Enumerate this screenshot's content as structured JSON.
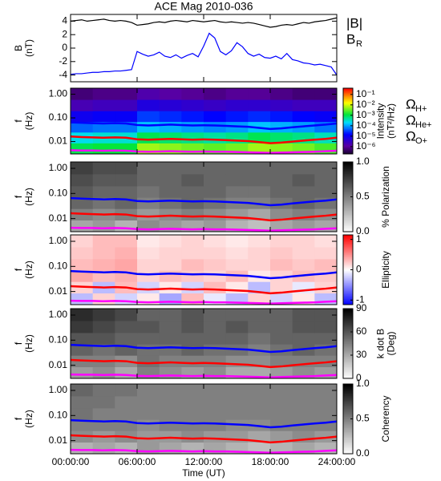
{
  "chart_data": [
    {
      "type": "line",
      "title": "ACE Mag 2010-036",
      "ylabel": [
        "B",
        "(nT)"
      ],
      "xlim": [
        0,
        24
      ],
      "xticks": [
        0,
        6,
        12,
        18,
        24
      ],
      "ylim": [
        -5,
        5
      ],
      "yticks": [
        -4,
        -2,
        0,
        2,
        4
      ],
      "x": [
        0,
        0.5,
        1,
        1.5,
        2,
        2.5,
        3,
        3.5,
        4,
        4.5,
        5,
        5.5,
        6,
        6.5,
        7,
        7.5,
        8,
        8.5,
        9,
        9.5,
        10,
        10.5,
        11,
        11.5,
        12,
        12.5,
        13,
        13.5,
        14,
        14.5,
        15,
        15.5,
        16,
        16.5,
        17,
        17.5,
        18,
        18.5,
        19,
        19.5,
        20,
        20.5,
        21,
        21.5,
        22,
        22.5,
        23,
        23.5,
        24
      ],
      "series": [
        {
          "name": "|B|",
          "color": "#000000",
          "values": [
            4.0,
            4.1,
            4.2,
            4.0,
            4.1,
            4.2,
            4.3,
            4.1,
            4.0,
            4.1,
            4.0,
            3.8,
            3.4,
            3.5,
            3.6,
            3.8,
            3.9,
            3.8,
            4.0,
            4.1,
            4.0,
            3.9,
            4.1,
            4.0,
            3.9,
            4.0,
            4.1,
            3.9,
            3.8,
            3.9,
            3.8,
            3.7,
            3.8,
            3.7,
            3.5,
            3.3,
            3.1,
            3.2,
            3.4,
            3.5,
            3.4,
            3.6,
            3.8,
            3.7,
            3.9,
            4.0,
            4.1,
            4.3,
            4.5
          ]
        },
        {
          "name": "B",
          "subscript": "R",
          "color": "#0000ff",
          "values": [
            -3.9,
            -3.8,
            -3.8,
            -3.7,
            -3.6,
            -3.6,
            -3.5,
            -3.5,
            -3.4,
            -3.4,
            -3.3,
            -3.2,
            -0.5,
            -0.9,
            -1.2,
            -1.0,
            -0.6,
            -1.2,
            -1.4,
            -1.0,
            -1.5,
            -1.1,
            -0.8,
            -1.3,
            0.3,
            2.2,
            1.5,
            -0.5,
            -1.0,
            -0.4,
            0.8,
            0.2,
            -0.8,
            -1.2,
            -0.9,
            -1.4,
            -1.5,
            -1.2,
            -1.6,
            -0.8,
            -1.7,
            -1.9,
            -2.2,
            -2.3,
            -2.5,
            -2.4,
            -2.6,
            -2.8,
            -4.0
          ]
        }
      ]
    },
    {
      "type": "heatmap",
      "ylabel": [
        "f",
        "(Hz)"
      ],
      "y_log": true,
      "xlim": [
        0,
        24
      ],
      "xticks": [
        0,
        6,
        12,
        18,
        24
      ],
      "ylim": [
        0.003,
        1.8
      ],
      "yticks": [
        {
          "value": 1,
          "label": "1.00"
        },
        {
          "value": 0.1,
          "label": "0.10"
        },
        0.01
      ],
      "x_edges": [
        0,
        2,
        4,
        6,
        8,
        10,
        12,
        14,
        16,
        18,
        20,
        22,
        24
      ],
      "y_edges": [
        0.003,
        0.0087,
        0.025,
        0.07,
        0.2,
        0.6,
        1.8
      ],
      "z": [
        [
          -3.0,
          -2.9,
          -2.9,
          -2.2,
          -2.3,
          -2.4,
          -2.5,
          -2.4,
          -2.2,
          -2.3,
          -2.4,
          -2.6
        ],
        [
          -3.6,
          -3.5,
          -3.5,
          -3.0,
          -3.1,
          -3.2,
          -3.3,
          -3.2,
          -3.0,
          -3.1,
          -3.2,
          -3.4
        ],
        [
          -4.3,
          -4.2,
          -4.2,
          -3.8,
          -3.9,
          -4.0,
          -4.1,
          -4.0,
          -3.8,
          -3.9,
          -4.0,
          -4.2
        ],
        [
          -5.0,
          -4.9,
          -4.9,
          -4.5,
          -4.6,
          -4.7,
          -4.8,
          -4.7,
          -4.6,
          -4.7,
          -4.8,
          -4.9
        ],
        [
          -5.7,
          -5.6,
          -5.6,
          -5.2,
          -5.3,
          -5.4,
          -5.5,
          -5.4,
          -5.4,
          -5.5,
          -5.6,
          -5.6
        ],
        [
          -6.2,
          -6.1,
          -6.1,
          -5.8,
          -5.9,
          -6.0,
          -6.1,
          -6.0,
          -6.0,
          -6.1,
          -6.2,
          -6.2
        ]
      ],
      "colorbar": {
        "label": [
          "Intensity",
          "(nT²/Hz)"
        ],
        "colormap": "rainbow",
        "lim": [
          -6.7,
          -0.4
        ],
        "ticks": [
          {
            "value": -1,
            "label": "10⁻¹"
          },
          {
            "value": -2,
            "label": "10⁻²"
          },
          {
            "value": -3,
            "label": "10⁻³"
          },
          {
            "value": -4,
            "label": "10⁻⁴"
          },
          {
            "value": -5,
            "label": "10⁻⁵"
          },
          {
            "value": -6,
            "label": "10⁻⁶"
          }
        ]
      },
      "x": [
        0,
        1,
        2,
        3,
        4,
        5,
        6,
        7,
        8,
        9,
        10,
        11,
        12,
        13,
        14,
        15,
        16,
        17,
        18,
        19,
        20,
        21,
        22,
        23,
        24
      ],
      "series": [
        {
          "name": "Ω",
          "subscript": "H+",
          "color": "#0000ff",
          "values": [
            0.065,
            0.062,
            0.06,
            0.058,
            0.06,
            0.058,
            0.05,
            0.048,
            0.05,
            0.052,
            0.05,
            0.048,
            0.049,
            0.048,
            0.046,
            0.044,
            0.042,
            0.038,
            0.034,
            0.036,
            0.04,
            0.044,
            0.048,
            0.052,
            0.058
          ]
        },
        {
          "name": "Ω",
          "subscript": "He+",
          "color": "#ff0000",
          "values": [
            0.0163,
            0.0155,
            0.015,
            0.0145,
            0.015,
            0.0145,
            0.0125,
            0.012,
            0.0125,
            0.013,
            0.0125,
            0.012,
            0.0123,
            0.012,
            0.0115,
            0.011,
            0.0105,
            0.0095,
            0.0085,
            0.009,
            0.01,
            0.011,
            0.012,
            0.013,
            0.0145
          ]
        },
        {
          "name": "Ω",
          "subscript": "O+",
          "color": "#ff00ff",
          "values": [
            0.0043,
            0.0042,
            0.0042,
            0.0041,
            0.0042,
            0.0041,
            0.0038,
            0.0037,
            0.0038,
            0.0039,
            0.0038,
            0.0037,
            0.0038,
            0.0037,
            0.0037,
            0.0036,
            0.0035,
            0.0034,
            0.0033,
            0.0034,
            0.0035,
            0.0036,
            0.0037,
            0.0039,
            0.0041
          ]
        }
      ]
    },
    {
      "type": "heatmap",
      "ylabel": [
        "f",
        "(Hz)"
      ],
      "y_log": true,
      "xlim": [
        0,
        24
      ],
      "xticks": [
        0,
        6,
        12,
        18,
        24
      ],
      "ylim": [
        0.003,
        1.8
      ],
      "yticks": [
        {
          "value": 1,
          "label": "1.00"
        },
        {
          "value": 0.1,
          "label": "0.10"
        },
        0.01
      ],
      "x_edges": [
        0,
        2,
        4,
        6,
        8,
        10,
        12,
        14,
        16,
        18,
        20,
        22,
        24
      ],
      "y_edges": [
        0.003,
        0.0087,
        0.025,
        0.07,
        0.2,
        0.6,
        1.8
      ],
      "z": [
        [
          0.35,
          0.4,
          0.3,
          0.45,
          0.4,
          0.35,
          0.4,
          0.3,
          0.25,
          0.35,
          0.4,
          0.35
        ],
        [
          0.5,
          0.45,
          0.5,
          0.4,
          0.45,
          0.5,
          0.45,
          0.4,
          0.35,
          0.45,
          0.5,
          0.45
        ],
        [
          0.6,
          0.55,
          0.6,
          0.5,
          0.55,
          0.6,
          0.55,
          0.5,
          0.5,
          0.55,
          0.6,
          0.55
        ],
        [
          0.65,
          0.6,
          0.6,
          0.55,
          0.6,
          0.6,
          0.6,
          0.55,
          0.55,
          0.6,
          0.6,
          0.6
        ],
        [
          0.7,
          0.65,
          0.65,
          0.6,
          0.6,
          0.65,
          0.6,
          0.6,
          0.6,
          0.6,
          0.65,
          0.6
        ],
        [
          0.75,
          0.7,
          0.7,
          0.6,
          0.6,
          0.6,
          0.6,
          0.6,
          0.6,
          0.6,
          0.6,
          0.6
        ]
      ],
      "colorbar": {
        "label": [
          "% Polarization"
        ],
        "colormap": "gray",
        "lim": [
          0,
          1
        ],
        "ticks": [
          {
            "value": 0,
            "label": "0.0"
          },
          0.5,
          {
            "value": 1,
            "label": "1.0"
          }
        ]
      }
    },
    {
      "type": "heatmap",
      "ylabel": [
        "f",
        "(Hz)"
      ],
      "y_log": true,
      "xlim": [
        0,
        24
      ],
      "xticks": [
        0,
        6,
        12,
        18,
        24
      ],
      "ylim": [
        0.003,
        1.8
      ],
      "yticks": [
        {
          "value": 1,
          "label": "1.00"
        },
        {
          "value": 0.1,
          "label": "0.10"
        },
        0.01
      ],
      "x_edges": [
        0,
        2,
        4,
        6,
        8,
        10,
        12,
        14,
        16,
        18,
        20,
        22,
        24
      ],
      "y_edges": [
        0.003,
        0.0087,
        0.025,
        0.07,
        0.2,
        0.6,
        1.8
      ],
      "z": [
        [
          -0.3,
          0.2,
          -0.2,
          0.1,
          -0.4,
          0.3,
          -0.1,
          -0.3,
          0.2,
          -0.2,
          0.1,
          -0.3
        ],
        [
          0.2,
          -0.3,
          0.3,
          -0.2,
          0.1,
          -0.2,
          0.3,
          0.1,
          -0.3,
          0.2,
          -0.1,
          0.2
        ],
        [
          0.4,
          0.3,
          0.35,
          0.2,
          0.3,
          0.25,
          0.2,
          0.3,
          0.1,
          0.2,
          0.3,
          0.25
        ],
        [
          0.3,
          0.35,
          0.4,
          0.2,
          0.2,
          0.3,
          0.25,
          0.2,
          0.2,
          0.3,
          0.25,
          0.3
        ],
        [
          0.25,
          0.3,
          0.35,
          0.15,
          0.2,
          0.2,
          0.2,
          0.15,
          0.2,
          0.25,
          0.2,
          0.2
        ],
        [
          0.2,
          0.3,
          0.3,
          0.1,
          0.15,
          0.2,
          0.15,
          0.1,
          0.15,
          0.2,
          0.2,
          0.15
        ]
      ],
      "colorbar": {
        "label": [
          "Ellipticity"
        ],
        "colormap": "bwr",
        "lim": [
          -1.15,
          1.15
        ],
        "ticks": [
          -1,
          0,
          1
        ]
      }
    },
    {
      "type": "heatmap",
      "ylabel": [
        "f",
        "(Hz)"
      ],
      "y_log": true,
      "xlim": [
        0,
        24
      ],
      "xticks": [
        0,
        6,
        12,
        18,
        24
      ],
      "ylim": [
        0.003,
        1.8
      ],
      "yticks": [
        {
          "value": 1,
          "label": "1.00"
        },
        {
          "value": 0.1,
          "label": "0.10"
        },
        0.01
      ],
      "x_edges": [
        0,
        2,
        4,
        6,
        8,
        10,
        12,
        14,
        16,
        18,
        20,
        22,
        24
      ],
      "y_edges": [
        0.003,
        0.0087,
        0.025,
        0.07,
        0.2,
        0.6,
        1.8
      ],
      "z": [
        [
          35,
          40,
          30,
          45,
          40,
          35,
          40,
          30,
          30,
          35,
          40,
          35
        ],
        [
          45,
          45,
          40,
          50,
          45,
          45,
          45,
          40,
          40,
          45,
          45,
          45
        ],
        [
          55,
          50,
          55,
          50,
          50,
          55,
          50,
          50,
          45,
          50,
          55,
          50
        ],
        [
          60,
          60,
          55,
          55,
          55,
          55,
          55,
          55,
          50,
          55,
          55,
          55
        ],
        [
          70,
          65,
          60,
          60,
          55,
          60,
          55,
          60,
          55,
          55,
          60,
          60
        ],
        [
          75,
          70,
          65,
          55,
          55,
          60,
          55,
          55,
          55,
          55,
          60,
          60
        ]
      ],
      "colorbar": {
        "label": [
          "k dot B",
          "(Deg)"
        ],
        "colormap": "gray",
        "lim": [
          0,
          90
        ],
        "ticks": [
          0,
          30,
          60,
          90
        ]
      }
    },
    {
      "type": "heatmap",
      "ylabel": [
        "f",
        "(Hz)"
      ],
      "y_log": true,
      "xlabel": "Time (UT)",
      "xlim": [
        0,
        24
      ],
      "xticks": [
        {
          "value": 0,
          "label": "00:00:00"
        },
        {
          "value": 6,
          "label": "06:00:00"
        },
        {
          "value": 12,
          "label": "12:00:00"
        },
        {
          "value": 18,
          "label": "18:00:00"
        },
        {
          "value": 24,
          "label": "24:00:00"
        }
      ],
      "ylim": [
        0.003,
        1.8
      ],
      "yticks": [
        {
          "value": 1,
          "label": "1.00"
        },
        {
          "value": 0.1,
          "label": "0.10"
        },
        0.01
      ],
      "x_edges": [
        0,
        2,
        4,
        6,
        8,
        10,
        12,
        14,
        16,
        18,
        20,
        22,
        24
      ],
      "y_edges": [
        0.003,
        0.0087,
        0.025,
        0.07,
        0.2,
        0.6,
        1.8
      ],
      "z": [
        [
          0.3,
          0.35,
          0.3,
          0.4,
          0.35,
          0.3,
          0.35,
          0.3,
          0.25,
          0.3,
          0.35,
          0.3
        ],
        [
          0.45,
          0.4,
          0.45,
          0.4,
          0.4,
          0.45,
          0.4,
          0.4,
          0.35,
          0.4,
          0.45,
          0.4
        ],
        [
          0.5,
          0.5,
          0.5,
          0.45,
          0.5,
          0.5,
          0.5,
          0.45,
          0.45,
          0.5,
          0.5,
          0.5
        ],
        [
          0.55,
          0.5,
          0.5,
          0.5,
          0.5,
          0.5,
          0.5,
          0.5,
          0.5,
          0.5,
          0.5,
          0.5
        ],
        [
          0.55,
          0.55,
          0.5,
          0.5,
          0.5,
          0.5,
          0.5,
          0.5,
          0.5,
          0.5,
          0.5,
          0.5
        ],
        [
          0.6,
          0.55,
          0.55,
          0.5,
          0.5,
          0.5,
          0.5,
          0.5,
          0.5,
          0.5,
          0.5,
          0.5
        ]
      ],
      "colorbar": {
        "label": [
          "Coherency"
        ],
        "colormap": "gray",
        "lim": [
          0,
          1
        ],
        "ticks": [
          {
            "value": 0,
            "label": "0.0"
          },
          0.5,
          {
            "value": 1,
            "label": "1.0"
          }
        ]
      }
    }
  ]
}
